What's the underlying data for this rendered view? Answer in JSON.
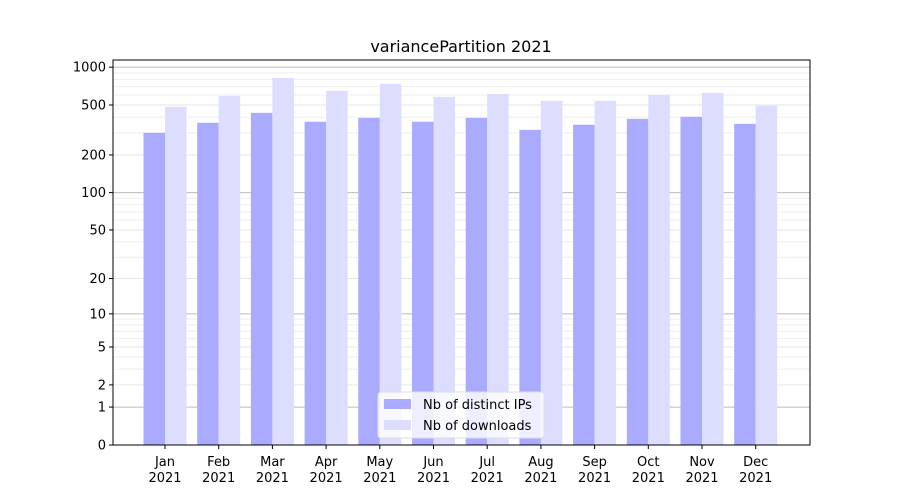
{
  "chart_data": {
    "type": "bar",
    "title": "variancePartition 2021",
    "xlabel": "",
    "ylabel": "",
    "y_scale": "log(1+x)",
    "ylim": [
      0,
      1140
    ],
    "grid": true,
    "legend_position": "bottom-center",
    "categories": [
      "Jan\n2021",
      "Feb\n2021",
      "Mar\n2021",
      "Apr\n2021",
      "May\n2021",
      "Jun\n2021",
      "Jul\n2021",
      "Aug\n2021",
      "Sep\n2021",
      "Oct\n2021",
      "Nov\n2021",
      "Dec\n2021"
    ],
    "y_ticks": [
      0,
      1,
      2,
      5,
      10,
      20,
      50,
      100,
      200,
      500,
      1000
    ],
    "series": [
      {
        "name": "Nb of distinct IPs",
        "color": "#aaaaff",
        "values": [
          300,
          361,
          433,
          368,
          395,
          368,
          395,
          317,
          348,
          388,
          403,
          354
        ]
      },
      {
        "name": "Nb of downloads",
        "color": "#ddddff",
        "values": [
          484,
          591,
          822,
          648,
          737,
          580,
          613,
          540,
          540,
          602,
          625,
          493
        ]
      }
    ]
  }
}
